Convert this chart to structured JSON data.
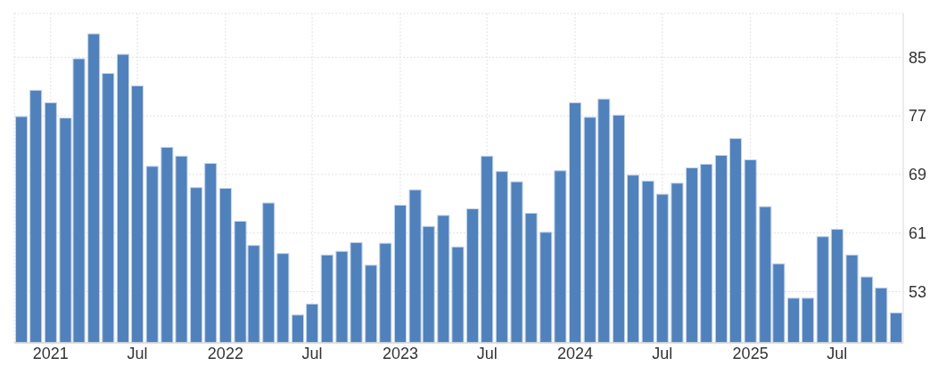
{
  "chart_data": {
    "type": "bar",
    "x": [
      "2020-11",
      "2020-12",
      "2021-01",
      "2021-02",
      "2021-03",
      "2021-04",
      "2021-05",
      "2021-06",
      "2021-07",
      "2021-08",
      "2021-09",
      "2021-10",
      "2021-11",
      "2021-12",
      "2022-01",
      "2022-02",
      "2022-03",
      "2022-04",
      "2022-05",
      "2022-06",
      "2022-07",
      "2022-08",
      "2022-09",
      "2022-10",
      "2022-11",
      "2022-12",
      "2023-01",
      "2023-02",
      "2023-03",
      "2023-04",
      "2023-05",
      "2023-06",
      "2023-07",
      "2023-08",
      "2023-09",
      "2023-10",
      "2023-11",
      "2023-12",
      "2024-01",
      "2024-02",
      "2024-03",
      "2024-04",
      "2024-05",
      "2024-06",
      "2024-07",
      "2024-08",
      "2024-09",
      "2024-10",
      "2024-11",
      "2024-12",
      "2025-01",
      "2025-02",
      "2025-03",
      "2025-04",
      "2025-05",
      "2025-06",
      "2025-07",
      "2025-08",
      "2025-09",
      "2025-10",
      "2025-11"
    ],
    "values": [
      76.9,
      80.5,
      78.8,
      76.7,
      84.8,
      88.2,
      82.8,
      85.4,
      81.1,
      70.1,
      72.7,
      71.5,
      67.2,
      70.5,
      67.1,
      62.6,
      59.3,
      65.1,
      58.2,
      49.8,
      51.3,
      58.0,
      58.5,
      59.7,
      56.6,
      59.6,
      64.8,
      66.9,
      61.9,
      63.4,
      59.1,
      64.3,
      71.5,
      69.4,
      68.0,
      63.7,
      61.1,
      69.5,
      78.8,
      76.8,
      79.3,
      77.1,
      68.9,
      68.1,
      66.3,
      67.8,
      69.9,
      70.4,
      71.6,
      73.9,
      71.0,
      64.6,
      56.8,
      52.1,
      52.1,
      60.5,
      61.5,
      58.0,
      55.0,
      53.5,
      50.1
    ],
    "color": "#4f81bd",
    "xlim": [
      "2020-10-17",
      "2025-11-16"
    ],
    "xticks": [
      {
        "value": "2021-01",
        "label": "2021"
      },
      {
        "value": "2021-07",
        "label": "Jul"
      },
      {
        "value": "2022-01",
        "label": "2022"
      },
      {
        "value": "2022-07",
        "label": "Jul"
      },
      {
        "value": "2023-01",
        "label": "2023"
      },
      {
        "value": "2023-07",
        "label": "Jul"
      },
      {
        "value": "2024-01",
        "label": "2024"
      },
      {
        "value": "2024-07",
        "label": "Jul"
      },
      {
        "value": "2025-01",
        "label": "2025"
      },
      {
        "value": "2025-07",
        "label": "Jul"
      }
    ],
    "ylim": [
      46,
      91
    ],
    "yticks": [
      53,
      61,
      69,
      77,
      85
    ],
    "grid": true
  }
}
